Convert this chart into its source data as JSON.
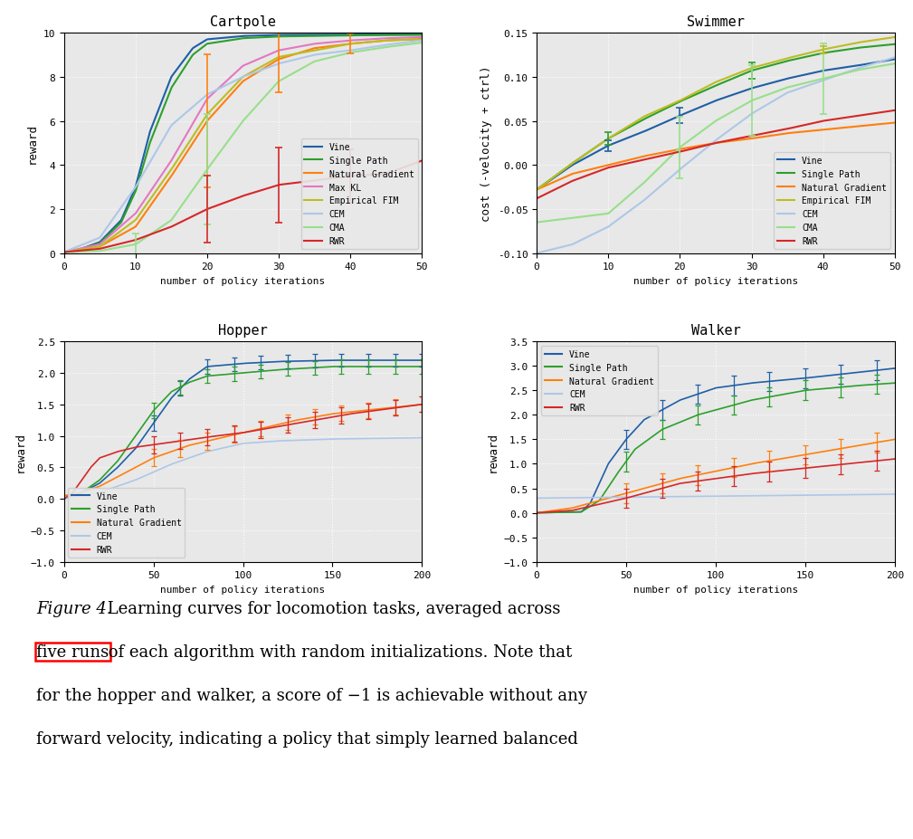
{
  "cartpole": {
    "title": "Cartpole",
    "xlabel": "number of policy iterations",
    "ylabel": "reward",
    "xlim": [
      0,
      50
    ],
    "ylim": [
      0,
      10
    ],
    "xticks": [
      0,
      10,
      20,
      30,
      40,
      50
    ],
    "yticks": [
      0,
      2,
      4,
      6,
      8,
      10
    ],
    "colors": {
      "Vine": "#1f5fa6",
      "Single Path": "#2ca02c",
      "Natural Gradient": "#ff7f0e",
      "Max KL": "#e377c2",
      "Empirical FIM": "#bcbd22",
      "CEM": "#aec7e8",
      "CMA": "#98df8a",
      "RWR": "#d62728"
    }
  },
  "swimmer": {
    "title": "Swimmer",
    "xlabel": "number of policy iterations",
    "ylabel": "cost (-velocity + ctrl)",
    "xlim": [
      0,
      50
    ],
    "ylim": [
      -0.1,
      0.15
    ],
    "xticks": [
      0,
      10,
      20,
      30,
      40,
      50
    ],
    "yticks": [
      -0.1,
      -0.05,
      0.0,
      0.05,
      0.1,
      0.15
    ],
    "colors": {
      "Vine": "#1f5fa6",
      "Single Path": "#2ca02c",
      "Natural Gradient": "#ff7f0e",
      "Empirical FIM": "#bcbd22",
      "CEM": "#aec7e8",
      "CMA": "#98df8a",
      "RWR": "#d62728"
    }
  },
  "hopper": {
    "title": "Hopper",
    "xlabel": "number of policy iterations",
    "ylabel": "reward",
    "xlim": [
      0,
      200
    ],
    "ylim": [
      -1.0,
      2.5
    ],
    "xticks": [
      0,
      50,
      100,
      150,
      200
    ],
    "yticks": [
      -1.0,
      -0.5,
      0.0,
      0.5,
      1.0,
      1.5,
      2.0,
      2.5
    ],
    "colors": {
      "Vine": "#1f5fa6",
      "Single Path": "#2ca02c",
      "Natural Gradient": "#ff7f0e",
      "CEM": "#aec7e8",
      "RWR": "#d62728"
    }
  },
  "walker": {
    "title": "Walker",
    "xlabel": "number of policy iterations",
    "ylabel": "reward",
    "xlim": [
      0,
      200
    ],
    "ylim": [
      -1.0,
      3.5
    ],
    "xticks": [
      0,
      50,
      100,
      150,
      200
    ],
    "yticks": [
      -1.0,
      -0.5,
      0.0,
      0.5,
      1.0,
      1.5,
      2.0,
      2.5,
      3.0,
      3.5
    ],
    "colors": {
      "Vine": "#1f5fa6",
      "Single Path": "#2ca02c",
      "Natural Gradient": "#ff7f0e",
      "CEM": "#aec7e8",
      "RWR": "#d62728"
    }
  },
  "bg_color": "#e8e8e8",
  "grid_color": "white",
  "caption_italic": "Figure 4.",
  "caption_normal": " Learning curves for locomotion tasks, averaged across",
  "caption_line2": "five runs of each algorithm with random initializations. Note that",
  "caption_line3": "for the hopper and walker, a score of −1 is achievable without any",
  "caption_line4": "forward velocity, indicating a policy that simply learned balanced",
  "caption_highlight": "five runs"
}
